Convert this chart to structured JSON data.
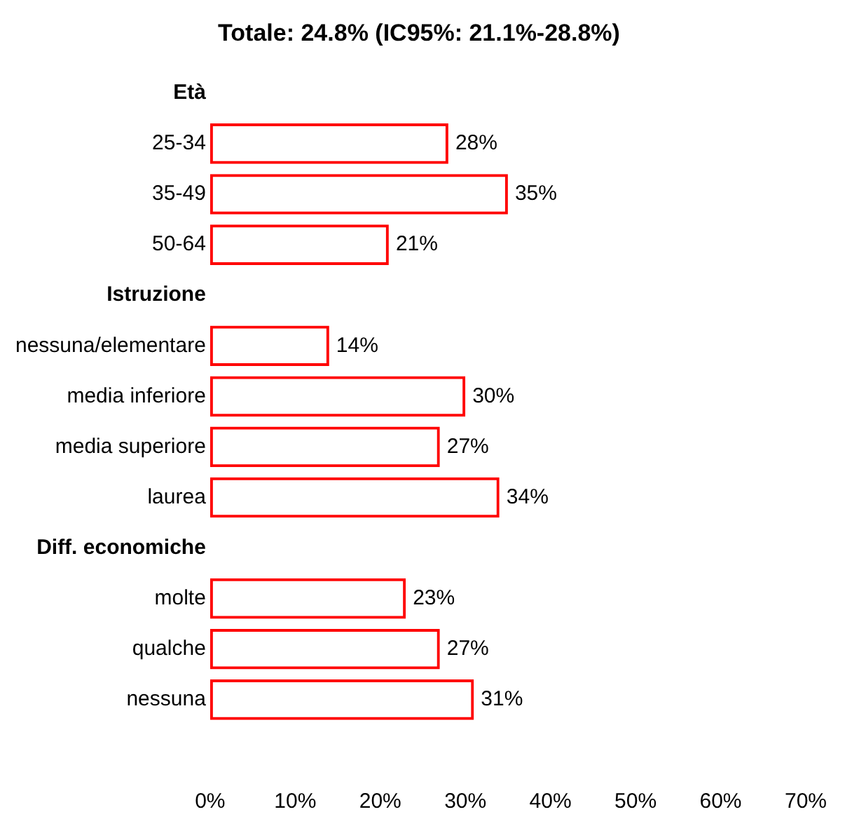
{
  "chart_data": {
    "type": "bar",
    "orientation": "horizontal",
    "title": "Totale: 24.8% (IC95%: 21.1%-28.8%)",
    "categories": [
      "Età",
      "25-34",
      "35-49",
      "50-64",
      "Istruzione",
      "nessuna/elementare",
      "media inferiore",
      "media superiore",
      "laurea",
      "Diff. economiche",
      "molte",
      "qualche",
      "nessuna",
      null
    ],
    "values": [
      null,
      28,
      35,
      21,
      null,
      14,
      30,
      27,
      34,
      null,
      23,
      27,
      31,
      null
    ],
    "value_labels": [
      null,
      "28%",
      "35%",
      "21%",
      null,
      "14%",
      "30%",
      "27%",
      "34%",
      null,
      "23%",
      "27%",
      "31%",
      null
    ],
    "color": "#ff0000",
    "xlim": [
      0,
      70
    ],
    "xticks": [
      {
        "value": 0,
        "label": "0%"
      },
      {
        "value": 10,
        "label": "10%"
      },
      {
        "value": 20,
        "label": "20%"
      },
      {
        "value": 30,
        "label": "30%"
      },
      {
        "value": 40,
        "label": "40%"
      },
      {
        "value": 50,
        "label": "50%"
      },
      {
        "value": 60,
        "label": "60%"
      },
      {
        "value": 70,
        "label": "70%"
      }
    ],
    "grid": false,
    "legend": false
  }
}
